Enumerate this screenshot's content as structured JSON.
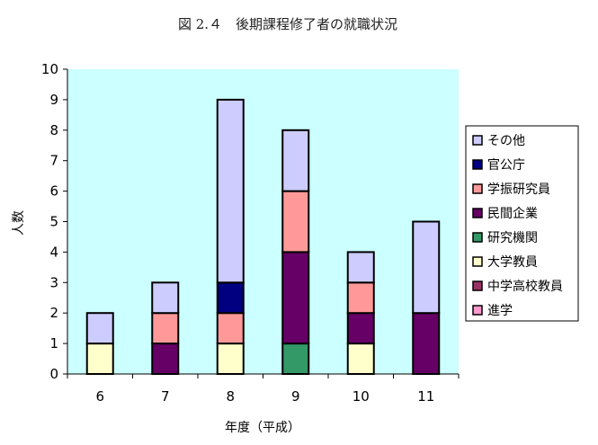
{
  "chart_data": {
    "type": "bar",
    "stacked": true,
    "title": "図 2.４　後期課程修了者の就職状況",
    "xlabel": "年度（平成）",
    "ylabel": "人数",
    "categories": [
      "6",
      "7",
      "8",
      "9",
      "10",
      "11"
    ],
    "ylim": [
      0,
      10
    ],
    "yticks": [
      "0",
      "1",
      "2",
      "3",
      "4",
      "5",
      "6",
      "7",
      "8",
      "9",
      "10"
    ],
    "grid": false,
    "plot_background": "#ccffff",
    "legend_position": "right",
    "series": [
      {
        "name": "進学",
        "color": "#ff99cc",
        "values": [
          0,
          0,
          0,
          0,
          0,
          0
        ]
      },
      {
        "name": "中学高校教員",
        "color": "#993366",
        "values": [
          0,
          0,
          0,
          0,
          0,
          0
        ]
      },
      {
        "name": "大学教員",
        "color": "#ffffcc",
        "values": [
          1,
          0,
          1,
          0,
          1,
          0
        ]
      },
      {
        "name": "研究機関",
        "color": "#339966",
        "values": [
          0,
          0,
          0,
          1,
          0,
          0
        ]
      },
      {
        "name": "民間企業",
        "color": "#660066",
        "values": [
          0,
          1,
          0,
          3,
          1,
          2
        ]
      },
      {
        "name": "学振研究員",
        "color": "#ff9999",
        "values": [
          0,
          1,
          1,
          2,
          1,
          0
        ]
      },
      {
        "name": "官公庁",
        "color": "#000080",
        "values": [
          0,
          0,
          1,
          0,
          0,
          0
        ]
      },
      {
        "name": "その他",
        "color": "#ccccff",
        "values": [
          1,
          1,
          6,
          2,
          1,
          3
        ]
      }
    ],
    "legend_order": [
      "その他",
      "官公庁",
      "学振研究員",
      "民間企業",
      "研究機関",
      "大学教員",
      "中学高校教員",
      "進学"
    ]
  }
}
